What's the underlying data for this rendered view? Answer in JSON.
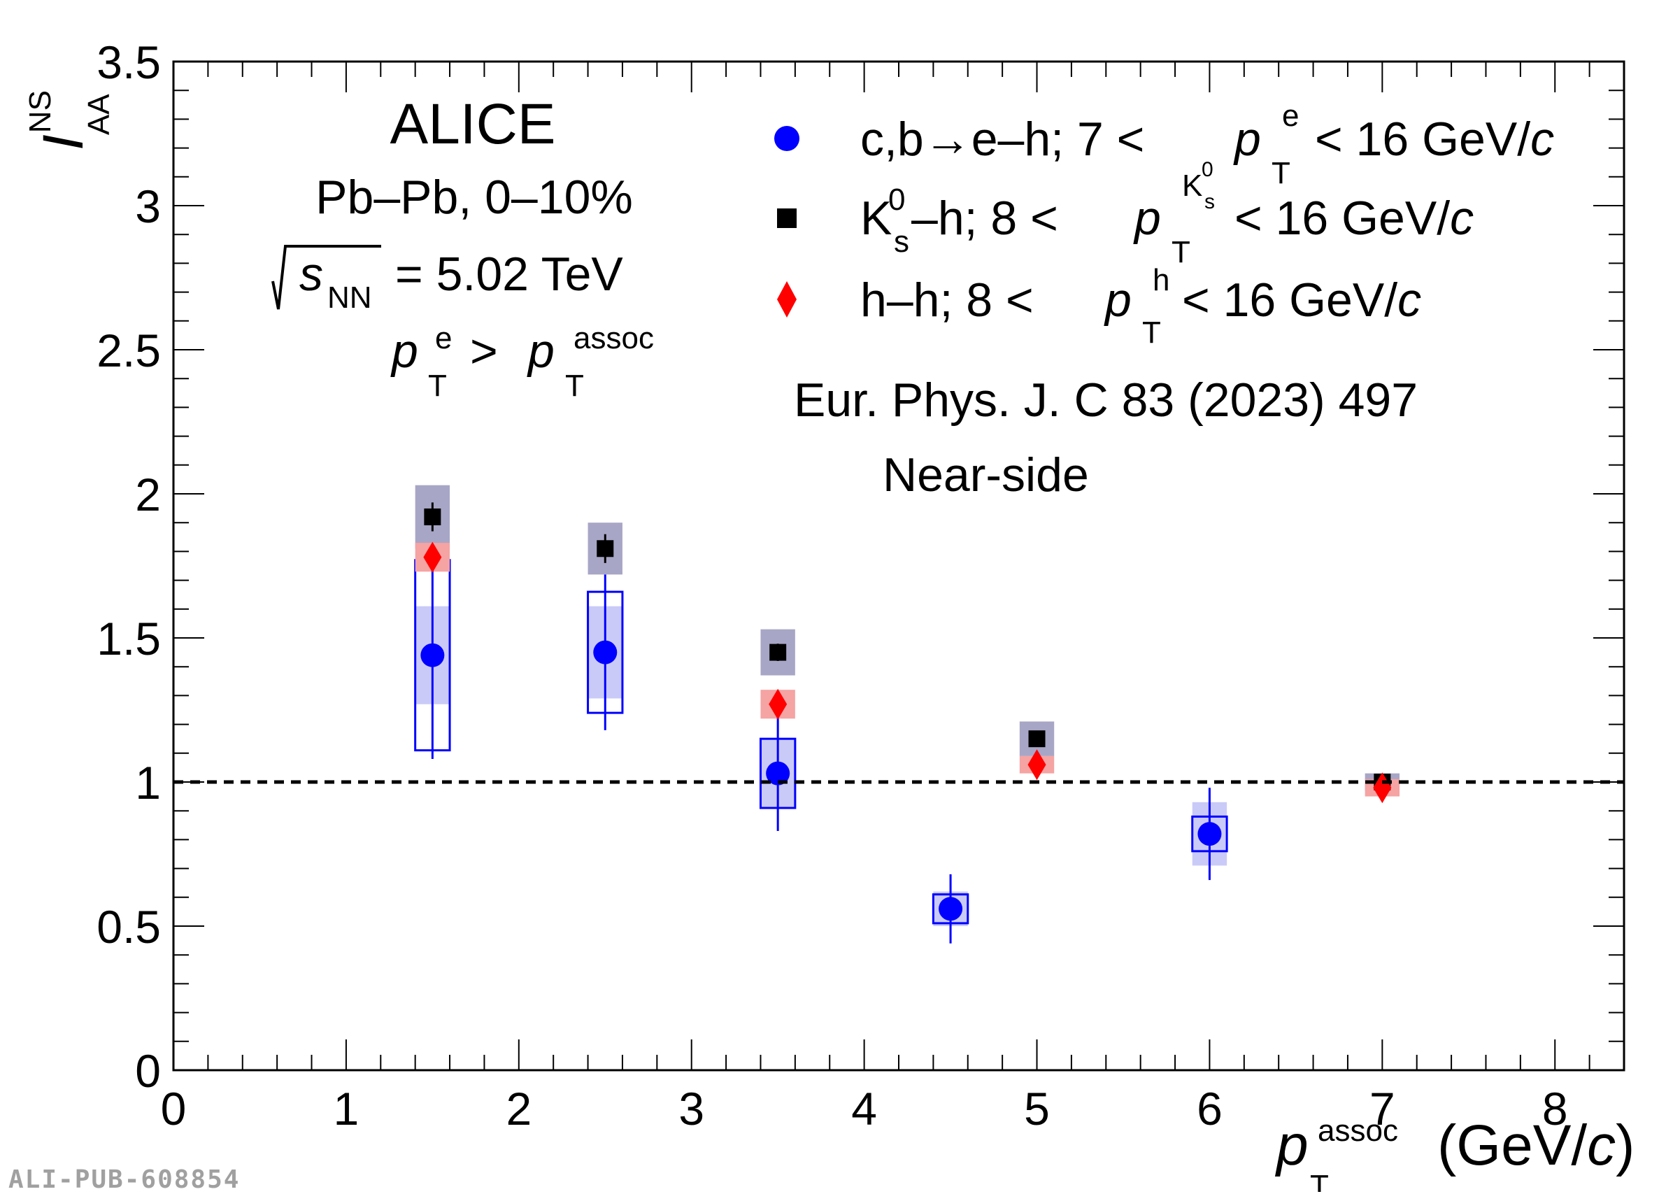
{
  "chart_data": {
    "type": "scatter",
    "experiment": "ALICE",
    "system": "Pb–Pb, 0–10%",
    "energy": {
      "sqrt": "s",
      "sub": "NN",
      "value": "= 5.02 TeV"
    },
    "cut": {
      "p1": "p",
      "p1_sup": "e",
      "p1_sub": "T",
      "op": ">",
      "p2": "p",
      "p2_sup": "assoc",
      "p2_sub": "T"
    },
    "reference": "Eur. Phys. J. C 83 (2023) 497",
    "annotation": "Near-side",
    "ylabel": {
      "main": "I",
      "sup": "NS",
      "sub": "AA"
    },
    "xlabel": {
      "main": "p",
      "sup": "assoc",
      "sub": "T",
      "unit_pre": "(GeV/",
      "unit_c": "c",
      "unit_post": ")"
    },
    "xlim": [
      0,
      8.4
    ],
    "ylim": [
      0,
      3.5
    ],
    "xticks": [
      "0",
      "1",
      "2",
      "3",
      "4",
      "5",
      "6",
      "7",
      "8"
    ],
    "yticks": [
      "0",
      "0.5",
      "1",
      "1.5",
      "2",
      "2.5",
      "3",
      "3.5"
    ],
    "reference_line": 1,
    "legend_position": "top-right",
    "legend": [
      {
        "text_a": "c,b→e–h; 7 < ",
        "p": "p",
        "sup": "e",
        "sub": "T",
        "text_b": " < 16 GeV/",
        "c": "c"
      },
      {
        "text_a": "K",
        "k_sup": "0",
        "k_sub": "s",
        "text_a2": "–h; 8 < ",
        "p": "p",
        "sup": "K",
        "sup_sup": "0",
        "sup_sub": "s",
        "sub": "T",
        "text_b": " < 16 GeV/",
        "c": "c"
      },
      {
        "text_a": "h–h; 8 < ",
        "p": "p",
        "sup": "h",
        "sub": "T",
        "text_b": " < 16 GeV/",
        "c": "c"
      }
    ],
    "series": [
      {
        "name": "c,b→e–h",
        "marker": "circle",
        "color": "#0000ff",
        "syst_fill": "#c4c4f7",
        "syst_stroke": "#0000ff",
        "points": [
          {
            "x": 1.5,
            "y": 1.44,
            "stat": 0.36,
            "syst_box": 0.33,
            "syst_fill": 0.17
          },
          {
            "x": 2.5,
            "y": 1.45,
            "stat": 0.27,
            "syst_box": 0.21,
            "syst_fill": 0.16
          },
          {
            "x": 3.5,
            "y": 1.03,
            "stat": 0.2,
            "syst_box": 0.12,
            "syst_fill": 0.12
          },
          {
            "x": 4.5,
            "y": 0.56,
            "stat": 0.12,
            "syst_box": 0.05,
            "syst_fill": 0.06
          },
          {
            "x": 6.0,
            "y": 0.82,
            "stat": 0.16,
            "syst_box": 0.06,
            "syst_fill": 0.11
          }
        ]
      },
      {
        "name": "K0s–h",
        "marker": "square",
        "color": "#000000",
        "syst_fill": "#a8a6c6",
        "points": [
          {
            "x": 1.5,
            "y": 1.92,
            "stat": 0.05,
            "syst": 0.11
          },
          {
            "x": 2.5,
            "y": 1.81,
            "stat": 0.05,
            "syst": 0.09
          },
          {
            "x": 3.5,
            "y": 1.45,
            "stat": 0.03,
            "syst": 0.08
          },
          {
            "x": 5.0,
            "y": 1.15,
            "stat": 0.02,
            "syst": 0.06
          },
          {
            "x": 7.0,
            "y": 1.0,
            "stat": 0.01,
            "syst": 0.03
          }
        ]
      },
      {
        "name": "h–h",
        "marker": "diamond",
        "color": "#ff0000",
        "syst_fill": "#f5a3a3",
        "points": [
          {
            "x": 1.5,
            "y": 1.78,
            "stat": 0.02,
            "syst": 0.05
          },
          {
            "x": 3.5,
            "y": 1.27,
            "stat": 0.02,
            "syst": 0.05
          },
          {
            "x": 5.0,
            "y": 1.06,
            "stat": 0.01,
            "syst": 0.03
          },
          {
            "x": 7.0,
            "y": 0.98,
            "stat": 0.01,
            "syst": 0.03
          }
        ]
      }
    ]
  },
  "footer": {
    "id": "ALI-PUB-608854"
  }
}
